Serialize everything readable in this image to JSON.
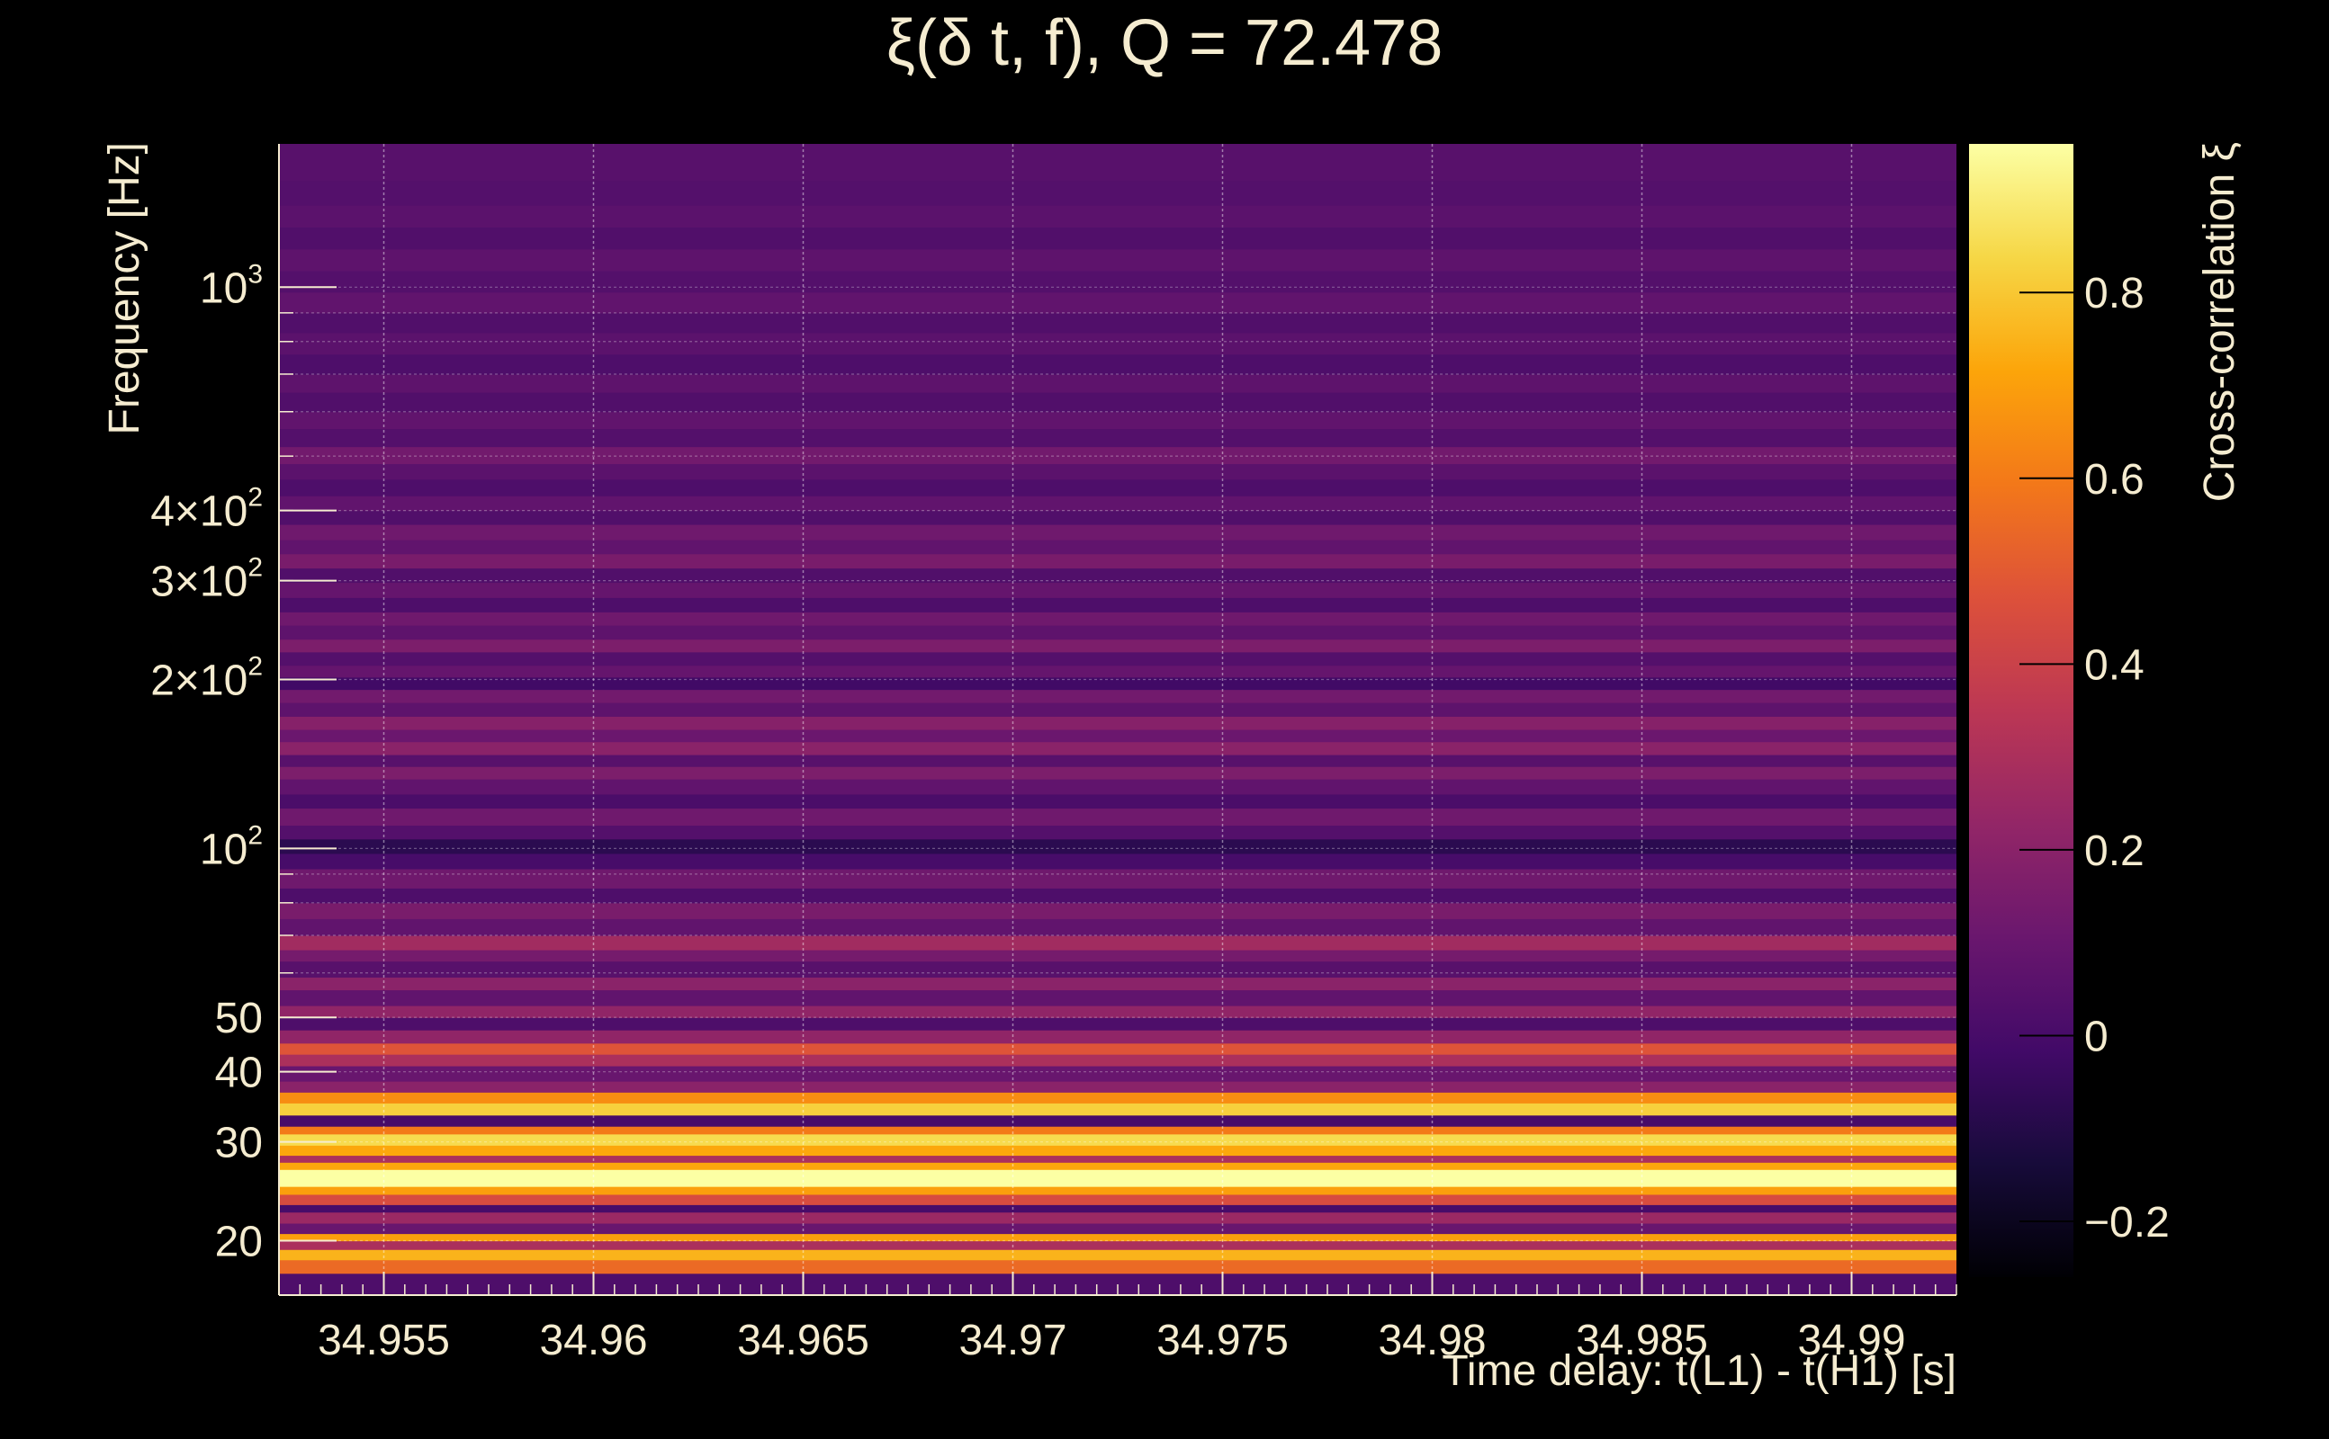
{
  "chart_data": {
    "type": "heatmap",
    "title": "ξ(δ t, f), Q = 72.478",
    "xlabel": "Time delay: t(L1) - t(H1) [s]",
    "ylabel": "Frequency [Hz]",
    "colorbar_label": "Cross-correlation ξ",
    "x_scale": "linear",
    "y_scale": "log",
    "xlim": [
      34.9525,
      34.9925
    ],
    "ylim": [
      16,
      1800
    ],
    "clim": [
      -0.26,
      0.96
    ],
    "grid": true,
    "x_ticks": [
      {
        "value": 34.955,
        "label": "34.955"
      },
      {
        "value": 34.96,
        "label": "34.96"
      },
      {
        "value": 34.965,
        "label": "34.965"
      },
      {
        "value": 34.97,
        "label": "34.97"
      },
      {
        "value": 34.975,
        "label": "34.975"
      },
      {
        "value": 34.98,
        "label": "34.98"
      },
      {
        "value": 34.985,
        "label": "34.985"
      },
      {
        "value": 34.99,
        "label": "34.99"
      }
    ],
    "y_ticks": [
      {
        "value": 20,
        "label": "20"
      },
      {
        "value": 30,
        "label": "30"
      },
      {
        "value": 40,
        "label": "40"
      },
      {
        "value": 50,
        "label": "50"
      },
      {
        "value": 100,
        "base": "10",
        "exp": "2"
      },
      {
        "value": 200,
        "base": "2×10",
        "exp": "2"
      },
      {
        "value": 300,
        "base": "3×10",
        "exp": "2"
      },
      {
        "value": 400,
        "base": "4×10",
        "exp": "2"
      },
      {
        "value": 1000,
        "base": "10",
        "exp": "3"
      }
    ],
    "colorbar_ticks": [
      {
        "value": -0.2,
        "label": "−0.2"
      },
      {
        "value": 0,
        "label": "0"
      },
      {
        "value": 0.2,
        "label": "0.2"
      },
      {
        "value": 0.4,
        "label": "0.4"
      },
      {
        "value": 0.6,
        "label": "0.6"
      },
      {
        "value": 0.8,
        "label": "0.8"
      }
    ],
    "colormap": "inferno",
    "bands": [
      {
        "f_low": 16,
        "f_high": 17.5,
        "value": 0.02
      },
      {
        "f_low": 17.5,
        "f_high": 18.5,
        "value": 0.55
      },
      {
        "f_low": 18.5,
        "f_high": 19.3,
        "value": 0.75
      },
      {
        "f_low": 19.3,
        "f_high": 20,
        "value": 0.3
      },
      {
        "f_low": 20,
        "f_high": 20.6,
        "value": 0.7
      },
      {
        "f_low": 20.6,
        "f_high": 21.5,
        "value": 0.1
      },
      {
        "f_low": 21.5,
        "f_high": 22.5,
        "value": 0.25
      },
      {
        "f_low": 22.5,
        "f_high": 23.2,
        "value": 0.0
      },
      {
        "f_low": 23.2,
        "f_high": 24.2,
        "value": 0.45
      },
      {
        "f_low": 24.2,
        "f_high": 25,
        "value": 0.7
      },
      {
        "f_low": 25,
        "f_high": 26.8,
        "value": 0.96
      },
      {
        "f_low": 26.8,
        "f_high": 27.6,
        "value": 0.72
      },
      {
        "f_low": 27.6,
        "f_high": 28.4,
        "value": 0.3
      },
      {
        "f_low": 28.4,
        "f_high": 29.6,
        "value": 0.72
      },
      {
        "f_low": 29.6,
        "f_high": 31,
        "value": 0.85
      },
      {
        "f_low": 31,
        "f_high": 32,
        "value": 0.6
      },
      {
        "f_low": 32,
        "f_high": 33.5,
        "value": 0.0
      },
      {
        "f_low": 33.5,
        "f_high": 35.2,
        "value": 0.82
      },
      {
        "f_low": 35.2,
        "f_high": 36.8,
        "value": 0.65
      },
      {
        "f_low": 36.8,
        "f_high": 38.5,
        "value": 0.2
      },
      {
        "f_low": 38.5,
        "f_high": 41,
        "value": 0.1
      },
      {
        "f_low": 41,
        "f_high": 43,
        "value": 0.3
      },
      {
        "f_low": 43,
        "f_high": 45,
        "value": 0.48
      },
      {
        "f_low": 45,
        "f_high": 47.5,
        "value": 0.22
      },
      {
        "f_low": 47.5,
        "f_high": 50,
        "value": 0.02
      },
      {
        "f_low": 50,
        "f_high": 52.5,
        "value": 0.22
      },
      {
        "f_low": 52.5,
        "f_high": 56,
        "value": 0.08
      },
      {
        "f_low": 56,
        "f_high": 59,
        "value": 0.2
      },
      {
        "f_low": 59,
        "f_high": 63,
        "value": 0.05
      },
      {
        "f_low": 63,
        "f_high": 66,
        "value": 0.14
      },
      {
        "f_low": 66,
        "f_high": 70,
        "value": 0.27
      },
      {
        "f_low": 70,
        "f_high": 75,
        "value": 0.08
      },
      {
        "f_low": 75,
        "f_high": 80,
        "value": 0.15
      },
      {
        "f_low": 80,
        "f_high": 85,
        "value": 0.02
      },
      {
        "f_low": 85,
        "f_high": 92,
        "value": 0.12
      },
      {
        "f_low": 92,
        "f_high": 98,
        "value": 0.0
      },
      {
        "f_low": 98,
        "f_high": 104,
        "value": -0.08
      },
      {
        "f_low": 104,
        "f_high": 110,
        "value": 0.04
      },
      {
        "f_low": 110,
        "f_high": 118,
        "value": 0.12
      },
      {
        "f_low": 118,
        "f_high": 125,
        "value": 0.01
      },
      {
        "f_low": 125,
        "f_high": 133,
        "value": 0.08
      },
      {
        "f_low": 133,
        "f_high": 140,
        "value": 0.16
      },
      {
        "f_low": 140,
        "f_high": 147,
        "value": 0.05
      },
      {
        "f_low": 147,
        "f_high": 155,
        "value": 0.2
      },
      {
        "f_low": 155,
        "f_high": 163,
        "value": 0.11
      },
      {
        "f_low": 163,
        "f_high": 172,
        "value": 0.19
      },
      {
        "f_low": 172,
        "f_high": 182,
        "value": 0.07
      },
      {
        "f_low": 182,
        "f_high": 192,
        "value": 0.13
      },
      {
        "f_low": 192,
        "f_high": 202,
        "value": -0.02
      },
      {
        "f_low": 202,
        "f_high": 212,
        "value": 0.09
      },
      {
        "f_low": 212,
        "f_high": 224,
        "value": 0.04
      },
      {
        "f_low": 224,
        "f_high": 236,
        "value": 0.16
      },
      {
        "f_low": 236,
        "f_high": 250,
        "value": 0.07
      },
      {
        "f_low": 250,
        "f_high": 264,
        "value": 0.12
      },
      {
        "f_low": 264,
        "f_high": 280,
        "value": 0.02
      },
      {
        "f_low": 280,
        "f_high": 298,
        "value": 0.09
      },
      {
        "f_low": 298,
        "f_high": 316,
        "value": 0.03
      },
      {
        "f_low": 316,
        "f_high": 335,
        "value": 0.15
      },
      {
        "f_low": 335,
        "f_high": 355,
        "value": 0.08
      },
      {
        "f_low": 355,
        "f_high": 378,
        "value": 0.12
      },
      {
        "f_low": 378,
        "f_high": 400,
        "value": 0.03
      },
      {
        "f_low": 400,
        "f_high": 425,
        "value": 0.08
      },
      {
        "f_low": 425,
        "f_high": 455,
        "value": 0.02
      },
      {
        "f_low": 455,
        "f_high": 485,
        "value": 0.06
      },
      {
        "f_low": 485,
        "f_high": 520,
        "value": 0.13
      },
      {
        "f_low": 520,
        "f_high": 560,
        "value": 0.04
      },
      {
        "f_low": 560,
        "f_high": 600,
        "value": 0.08
      },
      {
        "f_low": 600,
        "f_high": 650,
        "value": 0.03
      },
      {
        "f_low": 650,
        "f_high": 700,
        "value": 0.07
      },
      {
        "f_low": 700,
        "f_high": 760,
        "value": 0.02
      },
      {
        "f_low": 760,
        "f_high": 830,
        "value": 0.06
      },
      {
        "f_low": 830,
        "f_high": 900,
        "value": 0.03
      },
      {
        "f_low": 900,
        "f_high": 980,
        "value": 0.08
      },
      {
        "f_low": 980,
        "f_high": 1070,
        "value": 0.04
      },
      {
        "f_low": 1070,
        "f_high": 1170,
        "value": 0.07
      },
      {
        "f_low": 1170,
        "f_high": 1280,
        "value": 0.03
      },
      {
        "f_low": 1280,
        "f_high": 1400,
        "value": 0.06
      },
      {
        "f_low": 1400,
        "f_high": 1550,
        "value": 0.04
      },
      {
        "f_low": 1550,
        "f_high": 1800,
        "value": 0.05
      }
    ]
  }
}
